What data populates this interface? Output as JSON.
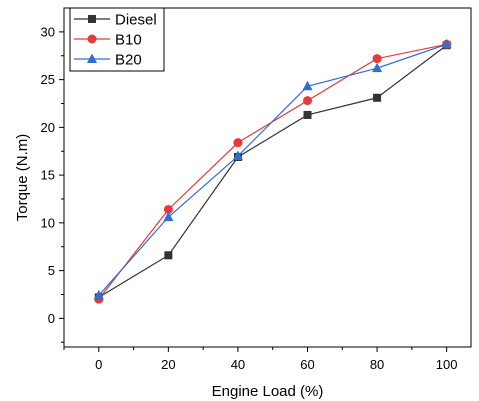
{
  "chart_data": {
    "type": "line",
    "xlabel": "Engine Load (%)",
    "ylabel": "Torque (N.m)",
    "x": [
      0,
      20,
      40,
      60,
      80,
      100
    ],
    "xlim": [
      -10,
      107
    ],
    "ylim": [
      -3,
      32.5
    ],
    "xticks": [
      "0",
      "20",
      "40",
      "60",
      "80",
      "100"
    ],
    "yticks": [
      "0",
      "5",
      "10",
      "15",
      "20",
      "25",
      "30"
    ],
    "legend_position": "top-left",
    "grid": false,
    "series": [
      {
        "name": "Diesel",
        "values": [
          2.2,
          6.6,
          16.9,
          21.3,
          23.1,
          28.6
        ],
        "color": "#333333",
        "marker": "square"
      },
      {
        "name": "B10",
        "values": [
          2.0,
          11.4,
          18.4,
          22.8,
          27.2,
          28.7
        ],
        "color": "#e8393a",
        "marker": "circle"
      },
      {
        "name": "B20",
        "values": [
          2.4,
          10.6,
          17.0,
          24.3,
          26.2,
          28.7
        ],
        "color": "#2f6fd0",
        "marker": "triangle"
      }
    ]
  }
}
